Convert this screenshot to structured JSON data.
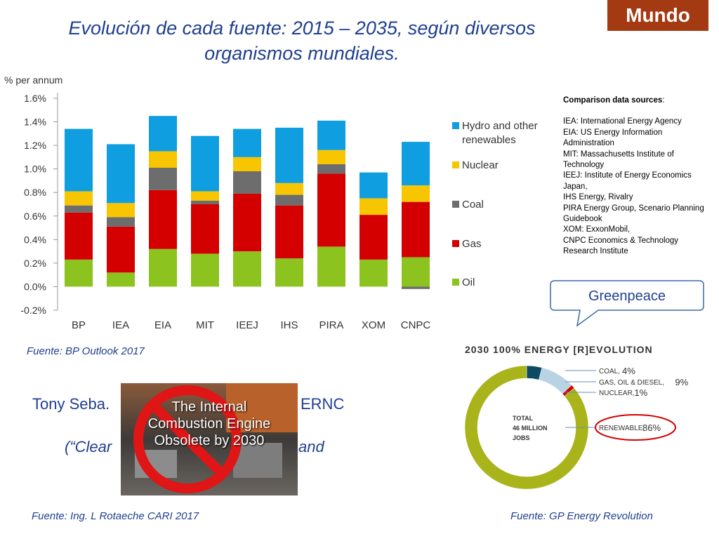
{
  "badge": "Mundo",
  "title_line1": "Evolución de cada fuente: 2015 – 2035, según diversos",
  "title_line2": "organismos mundiales.",
  "chart_data": {
    "type": "bar",
    "stacked": true,
    "ylabel": "% per annum",
    "ylim": [
      -0.2,
      1.6
    ],
    "yticks": [
      -0.2,
      0.0,
      0.2,
      0.4,
      0.6,
      0.8,
      1.0,
      1.2,
      1.4,
      1.6
    ],
    "ytick_labels": [
      "-0.2%",
      "0.0%",
      "0.2%",
      "0.4%",
      "0.6%",
      "0.8%",
      "1.0%",
      "1.2%",
      "1.4%",
      "1.6%"
    ],
    "categories": [
      "BP",
      "IEA",
      "EIA",
      "MIT",
      "IEEJ",
      "IHS",
      "PIRA",
      "XOM",
      "CNPC"
    ],
    "legend_placement": "right",
    "series": [
      {
        "name": "Oil",
        "color": "#8dc31f",
        "values": [
          0.23,
          0.12,
          0.32,
          0.28,
          0.3,
          0.24,
          0.34,
          0.23,
          0.25
        ]
      },
      {
        "name": "Gas",
        "color": "#d40000",
        "values": [
          0.4,
          0.39,
          0.5,
          0.42,
          0.49,
          0.45,
          0.62,
          0.38,
          0.47
        ]
      },
      {
        "name": "Coal",
        "color": "#6d6d6d",
        "values": [
          0.06,
          0.08,
          0.19,
          0.03,
          0.19,
          0.09,
          0.08,
          0.0,
          -0.02
        ]
      },
      {
        "name": "Nuclear",
        "color": "#f8c600",
        "values": [
          0.12,
          0.12,
          0.14,
          0.08,
          0.12,
          0.1,
          0.12,
          0.14,
          0.14
        ]
      },
      {
        "name": "Hydro and other renewables",
        "color": "#0f9ee0",
        "values": [
          0.53,
          0.5,
          0.3,
          0.47,
          0.24,
          0.47,
          0.25,
          0.22,
          0.37
        ]
      }
    ],
    "legend": [
      "Hydro and other renewables",
      "Nuclear",
      "Coal",
      "Gas",
      "Oil"
    ],
    "legend_lines": [
      [
        "Hydro and other",
        "renewables"
      ],
      [
        "Nuclear"
      ],
      [
        "Coal"
      ],
      [
        "Gas"
      ],
      [
        "Oil"
      ]
    ]
  },
  "source_bp": "Fuente: BP Outlook 2017",
  "sources_panel": {
    "head": "Comparison data sources",
    "colon": ":",
    "lines": [
      "IEA: International Energy Agency",
      "EIA: US Energy Information Administration",
      "MIT: Massachusetts Institute of Technology",
      "IEEJ: Institute of Energy Economics Japan,",
      "IHS Energy, Rivalry",
      "PIRA Energy Group, Scenario Planning Guidebook",
      "XOM: ExxonMobil,",
      "CNPC Economics & Technology Research Institute"
    ]
  },
  "greenpeace_label": "Greenpeace",
  "gp_chart": {
    "header": "2030 100% ENERGY [R]EVOLUTION",
    "center_lines": [
      "TOTAL",
      "46 MILLION",
      "JOBS"
    ],
    "slices": [
      {
        "label": "COAL,",
        "pct": "4%",
        "value": 4,
        "color": "#0d4a63"
      },
      {
        "label": "GAS, OIL & DIESEL,",
        "pct": "9%",
        "value": 9,
        "color": "#b8d4e4"
      },
      {
        "label": "NUCLEAR,",
        "pct": "1%",
        "value": 1,
        "color": "#d40000"
      },
      {
        "label": "RENEWABLE,",
        "pct": "86%",
        "value": 86,
        "color": "#a9b41a"
      }
    ]
  },
  "tony": {
    "line1_left": "Tony Seba.",
    "line1_right": "ERNC",
    "line2_left": "(“Clear",
    "line2_right": "and"
  },
  "photo_text": [
    "The Internal",
    "Combustion Engine",
    "Obsolete by 2030"
  ],
  "source_rotaeche": "Fuente: Ing. L Rotaeche CARI 2017",
  "source_gp": "Fuente: GP Energy Revolution"
}
